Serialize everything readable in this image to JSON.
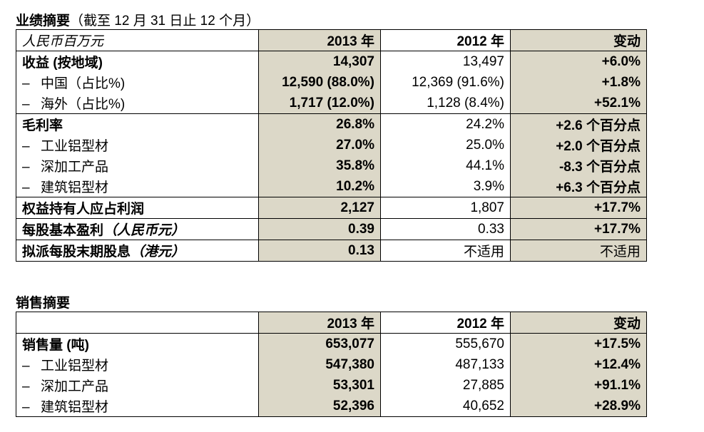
{
  "section1": {
    "title": "业绩摘要",
    "subtitle": "（截至 12 月 31 日止 12 个月）",
    "header": {
      "label": "人民币百万元",
      "y2013": "2013 年",
      "y2012": "2012 年",
      "change": "变动"
    },
    "rows": [
      {
        "label": "收益 (按地域)",
        "v2013": "14,307",
        "v2012": "13,497",
        "change": "+6.0%"
      },
      {
        "label": "中国（占比%)",
        "v2013": "12,590 (88.0%)",
        "v2012": "12,369 (91.6%)",
        "change": "+1.8%"
      },
      {
        "label": "海外（占比%)",
        "v2013": "1,717 (12.0%)",
        "v2012": "1,128 (8.4%)",
        "change": "+52.1%"
      },
      {
        "label": "毛利率",
        "v2013": "26.8%",
        "v2012": "24.2%",
        "change": "+2.6 个百分点"
      },
      {
        "label": "工业铝型材",
        "v2013": "27.0%",
        "v2012": "25.0%",
        "change": "+2.0 个百分点"
      },
      {
        "label": "深加工产品",
        "v2013": "35.8%",
        "v2012": "44.1%",
        "change": "-8.3 个百分点"
      },
      {
        "label": "建筑铝型材",
        "v2013": "10.2%",
        "v2012": "3.9%",
        "change": "+6.3 个百分点"
      },
      {
        "label": "权益持有人应占利润",
        "v2013": "2,127",
        "v2012": "1,807",
        "change": "+17.7%"
      },
      {
        "label": "每股基本盈利",
        "label_unit": "（人民币元）",
        "v2013": "0.39",
        "v2012": "0.33",
        "change": "+17.7%"
      },
      {
        "label": "拟派每股末期股息",
        "label_unit": "（港元）",
        "v2013": "0.13",
        "v2012": "不适用",
        "change": "不适用"
      }
    ]
  },
  "section2": {
    "title": "销售摘要",
    "header": {
      "label": "",
      "y2013": "2013 年",
      "y2012": "2012 年",
      "change": "变动"
    },
    "rows": [
      {
        "label": "销售量 (吨)",
        "v2013": "653,077",
        "v2012": "555,670",
        "change": "+17.5%"
      },
      {
        "label": "工业铝型材",
        "v2013": "547,380",
        "v2012": "487,133",
        "change": "+12.4%"
      },
      {
        "label": "深加工产品",
        "v2013": "53,301",
        "v2012": "27,885",
        "change": "+91.1%"
      },
      {
        "label": "建筑铝型材",
        "v2013": "52,396",
        "v2012": "40,652",
        "change": "+28.9%"
      }
    ]
  },
  "dash": "–"
}
